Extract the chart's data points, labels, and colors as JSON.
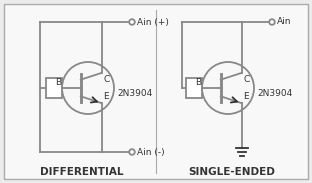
{
  "bg_color": "#ececec",
  "inner_bg": "#f8f8f8",
  "line_color": "#888888",
  "text_color": "#333333",
  "border_color": "#aaaaaa",
  "title1": "DIFFERENTIAL",
  "title2": "SINGLE-ENDED",
  "label1_top": "Ain (+)",
  "label1_bot": "Ain (-)",
  "label2_top": "Ain",
  "transistor_label": "2N3904",
  "label_B": "B",
  "label_C": "C",
  "label_E": "E"
}
